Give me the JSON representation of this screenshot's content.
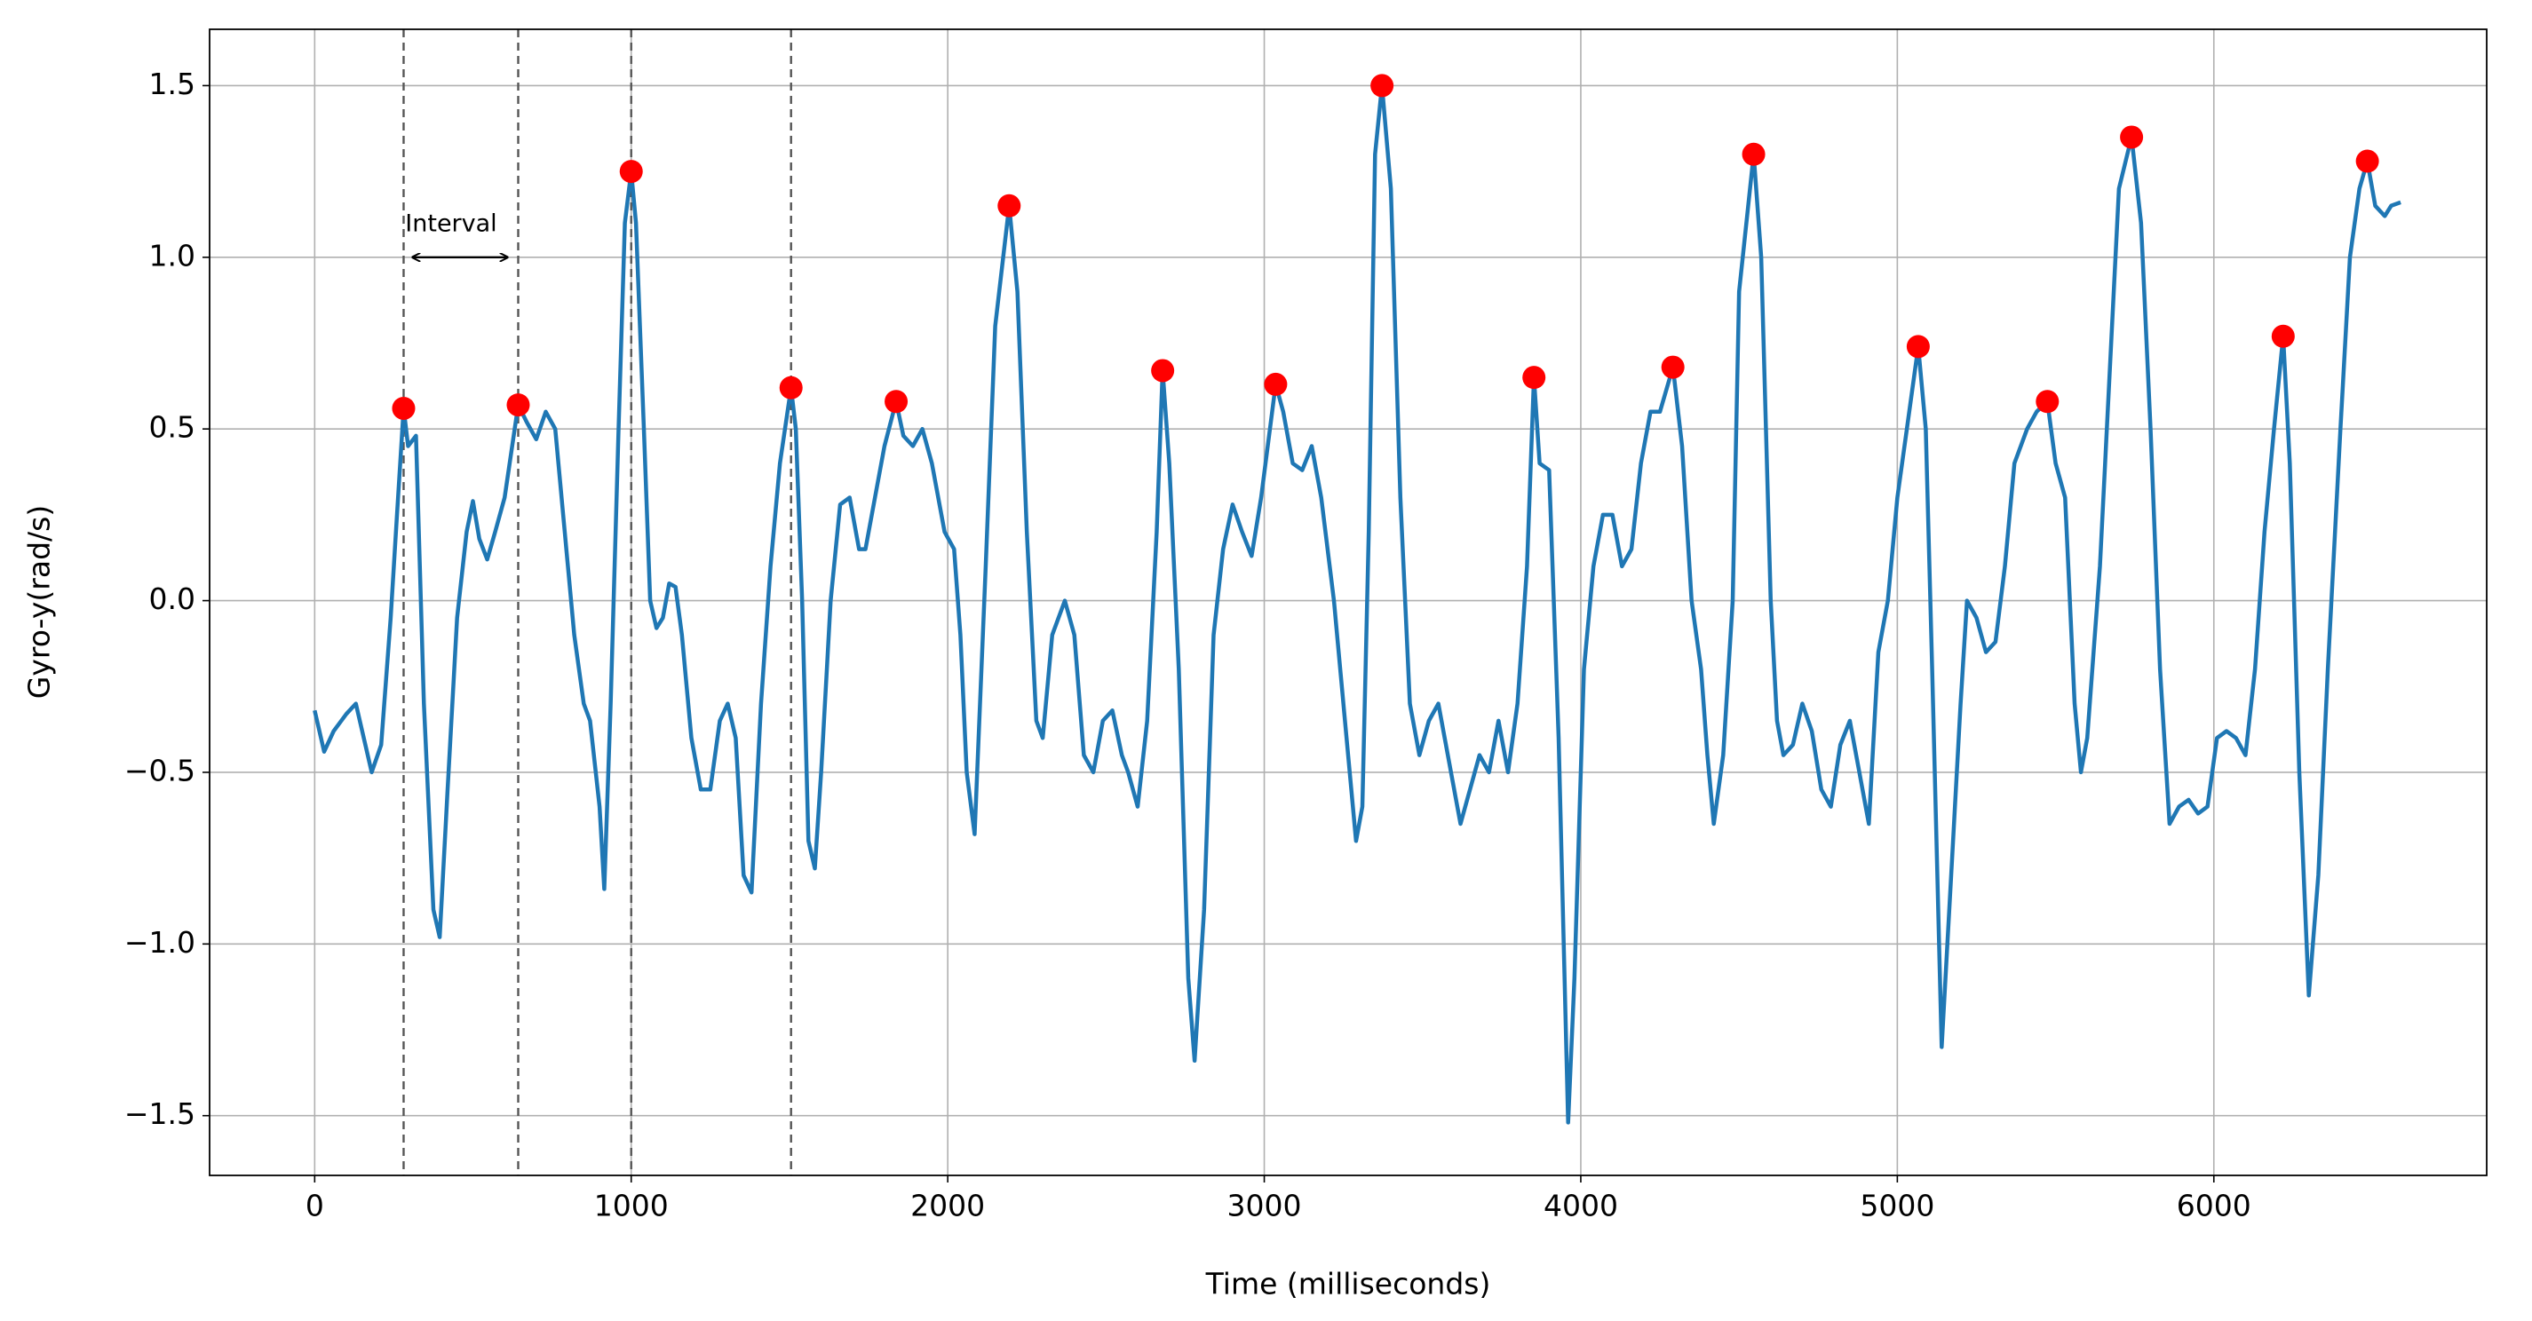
{
  "chart_data": {
    "type": "line",
    "xlabel": "Time (milliseconds)",
    "ylabel": "Gyro-y(rad/s)",
    "xlim": [
      -332,
      6862
    ],
    "ylim": [
      -1.674,
      1.664
    ],
    "xticks": [
      0,
      1000,
      2000,
      3000,
      4000,
      5000,
      6000
    ],
    "yticks": [
      {
        "value": -1.5,
        "label": "−1.5"
      },
      {
        "value": -1.0,
        "label": "−1.0"
      },
      {
        "value": -0.5,
        "label": "−0.5"
      },
      {
        "value": 0.0,
        "label": "0.0"
      },
      0.5,
      {
        "value": 1.0,
        "label": "1.0"
      },
      1.5
    ],
    "grid": true,
    "vlines": [
      281,
      643,
      1000,
      1505
    ],
    "annotation": {
      "text": "Interval",
      "y": 1.0
    },
    "series": [
      {
        "type": "line",
        "color": "#1f77b4",
        "x": [
          0,
          30,
          60,
          100,
          130,
          160,
          180,
          210,
          240,
          260,
          281,
          295,
          320,
          345,
          375,
          395,
          420,
          450,
          480,
          500,
          520,
          545,
          570,
          600,
          643,
          670,
          700,
          730,
          760,
          790,
          820,
          850,
          870,
          900,
          915,
          935,
          960,
          980,
          1000,
          1015,
          1040,
          1060,
          1080,
          1100,
          1120,
          1140,
          1160,
          1190,
          1220,
          1250,
          1280,
          1305,
          1330,
          1355,
          1380,
          1410,
          1440,
          1470,
          1505,
          1520,
          1540,
          1560,
          1580,
          1600,
          1630,
          1660,
          1690,
          1720,
          1740,
          1770,
          1800,
          1837,
          1860,
          1890,
          1920,
          1950,
          1990,
          2020,
          2040,
          2060,
          2085,
          2120,
          2150,
          2194,
          2220,
          2250,
          2280,
          2300,
          2330,
          2370,
          2400,
          2430,
          2460,
          2490,
          2520,
          2550,
          2570,
          2600,
          2630,
          2660,
          2679,
          2700,
          2730,
          2760,
          2780,
          2810,
          2840,
          2870,
          2900,
          2930,
          2960,
          2990,
          3036,
          3060,
          3090,
          3120,
          3150,
          3180,
          3220,
          3260,
          3290,
          3310,
          3330,
          3350,
          3372,
          3400,
          3430,
          3460,
          3490,
          3520,
          3550,
          3570,
          3590,
          3620,
          3650,
          3680,
          3710,
          3740,
          3770,
          3800,
          3830,
          3852,
          3870,
          3900,
          3930,
          3960,
          3980,
          4010,
          4040,
          4070,
          4100,
          4130,
          4160,
          4190,
          4220,
          4250,
          4291,
          4320,
          4350,
          4380,
          4400,
          4420,
          4450,
          4480,
          4500,
          4546,
          4570,
          4600,
          4620,
          4640,
          4670,
          4700,
          4730,
          4760,
          4790,
          4820,
          4850,
          4880,
          4910,
          4940,
          4970,
          5000,
          5030,
          5066,
          5090,
          5110,
          5140,
          5170,
          5200,
          5220,
          5250,
          5280,
          5310,
          5340,
          5370,
          5410,
          5440,
          5474,
          5500,
          5530,
          5560,
          5580,
          5600,
          5640,
          5700,
          5740,
          5770,
          5800,
          5830,
          5860,
          5890,
          5920,
          5950,
          5980,
          6010,
          6040,
          6070,
          6100,
          6130,
          6160,
          6190,
          6219,
          6240,
          6270,
          6300,
          6330,
          6360,
          6400,
          6430,
          6460,
          6485,
          6510,
          6540,
          6560,
          6590
        ],
        "values": [
          -0.32,
          -0.44,
          -0.38,
          -0.33,
          -0.3,
          -0.42,
          -0.5,
          -0.42,
          -0.05,
          0.25,
          0.56,
          0.45,
          0.48,
          -0.3,
          -0.9,
          -0.98,
          -0.55,
          -0.05,
          0.2,
          0.29,
          0.18,
          0.12,
          0.2,
          0.3,
          0.57,
          0.52,
          0.47,
          0.55,
          0.5,
          0.2,
          -0.1,
          -0.3,
          -0.35,
          -0.6,
          -0.84,
          -0.3,
          0.5,
          1.1,
          1.25,
          1.1,
          0.5,
          0.0,
          -0.08,
          -0.05,
          0.05,
          0.04,
          -0.1,
          -0.4,
          -0.55,
          -0.55,
          -0.35,
          -0.3,
          -0.4,
          -0.8,
          -0.85,
          -0.3,
          0.1,
          0.4,
          0.62,
          0.5,
          0.0,
          -0.7,
          -0.78,
          -0.5,
          0.0,
          0.28,
          0.3,
          0.15,
          0.15,
          0.3,
          0.45,
          0.58,
          0.48,
          0.45,
          0.5,
          0.4,
          0.2,
          0.15,
          -0.1,
          -0.5,
          -0.68,
          0.1,
          0.8,
          1.15,
          0.9,
          0.2,
          -0.35,
          -0.4,
          -0.1,
          0.0,
          -0.1,
          -0.45,
          -0.5,
          -0.35,
          -0.32,
          -0.45,
          -0.5,
          -0.6,
          -0.35,
          0.2,
          0.67,
          0.4,
          -0.2,
          -1.1,
          -1.34,
          -0.9,
          -0.1,
          0.15,
          0.28,
          0.2,
          0.13,
          0.3,
          0.63,
          0.55,
          0.4,
          0.38,
          0.45,
          0.3,
          0.0,
          -0.4,
          -0.7,
          -0.6,
          0.2,
          1.3,
          1.5,
          1.2,
          0.3,
          -0.3,
          -0.45,
          -0.35,
          -0.3,
          -0.4,
          -0.5,
          -0.65,
          -0.55,
          -0.45,
          -0.5,
          -0.35,
          -0.5,
          -0.3,
          0.1,
          0.65,
          0.4,
          0.38,
          -0.4,
          -1.52,
          -1.1,
          -0.2,
          0.1,
          0.25,
          0.25,
          0.1,
          0.15,
          0.4,
          0.55,
          0.55,
          0.68,
          0.45,
          0.0,
          -0.2,
          -0.45,
          -0.65,
          -0.45,
          0.0,
          0.9,
          1.3,
          1.0,
          0.0,
          -0.35,
          -0.45,
          -0.42,
          -0.3,
          -0.38,
          -0.55,
          -0.6,
          -0.42,
          -0.35,
          -0.5,
          -0.65,
          -0.15,
          0.0,
          0.3,
          0.5,
          0.74,
          0.5,
          -0.2,
          -1.3,
          -0.8,
          -0.3,
          0.0,
          -0.05,
          -0.15,
          -0.12,
          0.1,
          0.4,
          0.5,
          0.55,
          0.58,
          0.4,
          0.3,
          -0.3,
          -0.5,
          -0.4,
          0.1,
          1.2,
          1.35,
          1.1,
          0.5,
          -0.2,
          -0.65,
          -0.6,
          -0.58,
          -0.62,
          -0.6,
          -0.4,
          -0.38,
          -0.4,
          -0.45,
          -0.2,
          0.2,
          0.5,
          0.77,
          0.4,
          -0.5,
          -1.15,
          -0.8,
          -0.2,
          0.5,
          1.0,
          1.2,
          1.28,
          1.15,
          1.12,
          1.15,
          1.16
        ]
      },
      {
        "type": "scatter",
        "color": "#ff0000",
        "x": [
          281,
          643,
          1000,
          1505,
          1837,
          2194,
          2679,
          3036,
          3372,
          3852,
          4291,
          4546,
          5066,
          5474,
          5740,
          6219,
          6485
        ],
        "values": [
          0.56,
          0.57,
          1.25,
          0.62,
          0.58,
          1.15,
          0.67,
          0.63,
          1.5,
          0.65,
          0.68,
          1.3,
          0.74,
          0.58,
          1.35,
          0.77,
          1.28
        ]
      }
    ]
  }
}
